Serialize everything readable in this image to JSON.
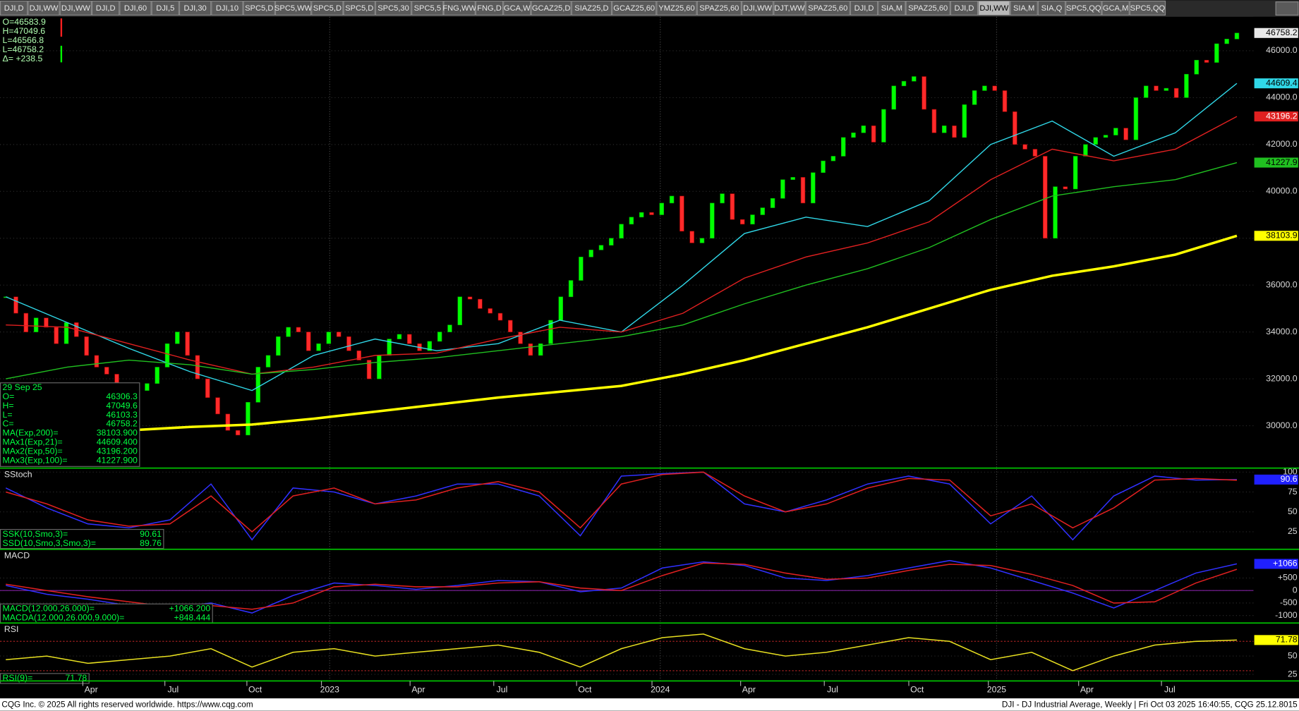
{
  "tabs": [
    "DJI,D",
    "DJI,WW",
    "DJI,WW",
    "DJI,D",
    "DJI,60",
    "DJI,5",
    "DJI,30",
    "DJI,10",
    "SPC5,D",
    "SPC5,WW",
    "SPC5,D",
    "SPC5,D",
    "SPC5,30",
    "SPC5,5",
    "FNG,WW",
    "FNG,D",
    "GCA,W",
    "GCAZ25,D",
    "SIAZ25,D",
    "GCAZ25,60",
    "YMZ25,60",
    "SPAZ25,60",
    "DJI,WW",
    "DJT,WW",
    "SPAZ25,60",
    "DJI,D",
    "SIA,M",
    "SPAZ25,60",
    "DJI,D",
    "DJI,WW",
    "SIA,M",
    "SIA,Q",
    "SPC5,QQ",
    "GCA,M",
    "SPC5,QQ"
  ],
  "active_tab": 29,
  "ohlc_readout": [
    "O=46583.9",
    "H=47049.6",
    "L=46566.8",
    "L=46758.2",
    "Δ= +238.5"
  ],
  "price": {
    "ylim": [
      28190,
      47450
    ],
    "yticks": [
      {
        "value": 30000,
        "label": "30000.0"
      },
      {
        "value": 32000,
        "label": "32000.0"
      },
      {
        "value": 34000,
        "label": "34000.0"
      },
      {
        "value": 36000,
        "label": "36000.0"
      },
      {
        "value": 38000,
        "label": "38000.0"
      },
      {
        "value": 40000,
        "label": "40000.0"
      },
      {
        "value": 42000,
        "label": "42000.0"
      },
      {
        "value": 44000,
        "label": "44000.0"
      },
      {
        "value": 46000,
        "label": "46000.0"
      }
    ],
    "up_color": "#00ff00",
    "down_color": "#ff2a2a",
    "closes": [
      35500,
      34800,
      34000,
      34600,
      34200,
      33500,
      34400,
      33800,
      33000,
      32500,
      32200,
      31800,
      30500,
      31500,
      31800,
      32500,
      33500,
      34000,
      33000,
      32000,
      31200,
      30500,
      29800,
      29600,
      31000,
      32500,
      33000,
      33800,
      34200,
      34000,
      33200,
      33500,
      34000,
      33800,
      33200,
      32800,
      32000,
      33000,
      33700,
      33900,
      33500,
      33200,
      33600,
      34000,
      34300,
      35500,
      35400,
      35000,
      34800,
      34500,
      34000,
      33500,
      33000,
      33500,
      34500,
      35500,
      36200,
      37200,
      37500,
      37700,
      38000,
      38600,
      38900,
      39100,
      39000,
      39500,
      39800,
      38300,
      37800,
      38000,
      39500,
      39900,
      38800,
      38600,
      39000,
      39300,
      39700,
      40500,
      40600,
      39500,
      40800,
      41300,
      41500,
      42300,
      42500,
      42800,
      42100,
      43500,
      44500,
      44700,
      44900,
      43500,
      42500,
      42800,
      42300,
      43700,
      44300,
      44500,
      44300,
      43400,
      42000,
      41800,
      41500,
      38000,
      40200,
      40100,
      41500,
      42000,
      42300,
      42400,
      42700,
      42200,
      44000,
      44500,
      44300,
      44400,
      44000,
      45000,
      45600,
      45500,
      46300,
      46500,
      46758.2
    ],
    "averages": [
      {
        "name": "MA(Exp,200)",
        "color": "#ffff00",
        "values": [
          null,
          null,
          29800,
          29950,
          30050,
          30300,
          30600,
          30900,
          31200,
          31450,
          31700,
          32200,
          32800,
          33500,
          34200,
          35000,
          35800,
          36400,
          36800,
          37300,
          38103.9
        ]
      },
      {
        "name": "MAx1(Exp,21)",
        "color": "#30d8e8",
        "values": [
          35500,
          34400,
          33300,
          32300,
          31500,
          33000,
          33700,
          33200,
          33500,
          34500,
          34000,
          36000,
          38200,
          38900,
          38500,
          39600,
          42000,
          43000,
          41500,
          42500,
          44609.4
        ]
      },
      {
        "name": "MAx2(Exp,50)",
        "color": "#e02020",
        "values": [
          34300,
          34200,
          33500,
          32800,
          32200,
          32500,
          33000,
          33100,
          33700,
          34200,
          34000,
          34800,
          36300,
          37200,
          37800,
          38700,
          40500,
          41800,
          41300,
          41800,
          43196.2
        ]
      },
      {
        "name": "MAx3(Exp,100)",
        "color": "#20c020",
        "values": [
          32000,
          32500,
          32800,
          32600,
          32200,
          32400,
          32700,
          32900,
          33200,
          33500,
          33800,
          34300,
          35200,
          36000,
          36700,
          37600,
          38800,
          39800,
          40200,
          40500,
          41227.9
        ]
      }
    ],
    "info": {
      "date": "29 Sep 25",
      "rows": [
        [
          "O=",
          "46306.3"
        ],
        [
          "H=",
          "47049.6"
        ],
        [
          "L=",
          "46103.3"
        ],
        [
          "C=",
          "46758.2"
        ],
        [
          "MA(Exp,200)=",
          "38103.900"
        ],
        [
          "MAx1(Exp,21)=",
          "44609.400"
        ],
        [
          "MAx2(Exp,50)=",
          "43196.200"
        ],
        [
          "MAx3(Exp,100)=",
          "41227.900"
        ]
      ]
    }
  },
  "stoch": {
    "title": "SStoch",
    "ylim": [
      3,
      105
    ],
    "yticks": [
      25,
      50,
      75,
      100
    ],
    "last_label": "90.6",
    "last_color": "#2020ff",
    "series": [
      {
        "name": "SSK",
        "color": "#3030ff",
        "values": [
          80,
          55,
          35,
          30,
          40,
          85,
          15,
          80,
          75,
          60,
          70,
          85,
          85,
          70,
          20,
          95,
          98,
          100,
          60,
          50,
          65,
          85,
          95,
          85,
          35,
          70,
          15,
          70,
          95,
          90,
          90.61
        ]
      },
      {
        "name": "SSD",
        "color": "#e02020",
        "values": [
          75,
          60,
          40,
          32,
          35,
          70,
          25,
          70,
          80,
          60,
          65,
          80,
          88,
          75,
          30,
          85,
          97,
          100,
          70,
          50,
          60,
          80,
          92,
          90,
          45,
          60,
          30,
          55,
          90,
          92,
          89.76
        ]
      }
    ],
    "readout": [
      [
        "SSK(10,Smo,3)=",
        "90.61"
      ],
      [
        "SSD(10,Smo,3,Smo,3)=",
        "89.76"
      ]
    ]
  },
  "macd": {
    "title": "MACD",
    "ylim": [
      -1300,
      1650
    ],
    "yticks": [
      {
        "value": 500,
        "label": "+500"
      },
      0,
      -500,
      -1000
    ],
    "last_label": "+1066",
    "last_color": "#2020ff",
    "series": [
      {
        "name": "MACD",
        "color": "#3030ff",
        "values": [
          200,
          -150,
          -350,
          -600,
          -700,
          -500,
          -900,
          -200,
          300,
          200,
          50,
          200,
          400,
          350,
          -50,
          100,
          900,
          1150,
          1000,
          500,
          400,
          600,
          900,
          1200,
          900,
          400,
          -100,
          -700,
          0,
          700,
          1066.2
        ]
      },
      {
        "name": "MACDA",
        "color": "#e02020",
        "values": [
          250,
          0,
          -250,
          -450,
          -650,
          -600,
          -750,
          -500,
          150,
          250,
          150,
          150,
          300,
          350,
          100,
          0,
          600,
          1100,
          1050,
          700,
          450,
          500,
          800,
          1050,
          1000,
          650,
          200,
          -500,
          -450,
          300,
          848.444
        ]
      }
    ],
    "readout": [
      [
        "MACD(12.000,26.000)=",
        "+1066.200"
      ],
      [
        "MACDA(12.000,26.000,9.000)=",
        "+848.444"
      ]
    ]
  },
  "rsi": {
    "title": "RSI",
    "ylim": [
      16,
      95
    ],
    "yticks": [
      25,
      50
    ],
    "levels": [
      70,
      30
    ],
    "last_color": "#ffff00",
    "series": [
      {
        "name": "RSI",
        "color": "#e8e020",
        "values": [
          45,
          50,
          40,
          45,
          50,
          60,
          35,
          55,
          60,
          50,
          55,
          60,
          65,
          55,
          35,
          60,
          75,
          80,
          60,
          50,
          55,
          65,
          75,
          70,
          45,
          55,
          30,
          50,
          65,
          70,
          71.78
        ]
      }
    ],
    "readout": [
      [
        "RSI(9)=",
        "71.78"
      ]
    ]
  },
  "dates": [
    "Apr",
    "Jul",
    "Oct",
    "2023",
    "Apr",
    "Jul",
    "Oct",
    "2024",
    "Apr",
    "Jul",
    "Oct",
    "2025",
    "Apr",
    "Jul"
  ],
  "footer": {
    "left": "CQG Inc. © 2025 All rights reserved worldwide. https://www.cqg.com",
    "right": "DJI - DJ Industrial Average, Weekly | Fri Oct 03 2025 16:40:55, CQG 25.12.8015"
  }
}
